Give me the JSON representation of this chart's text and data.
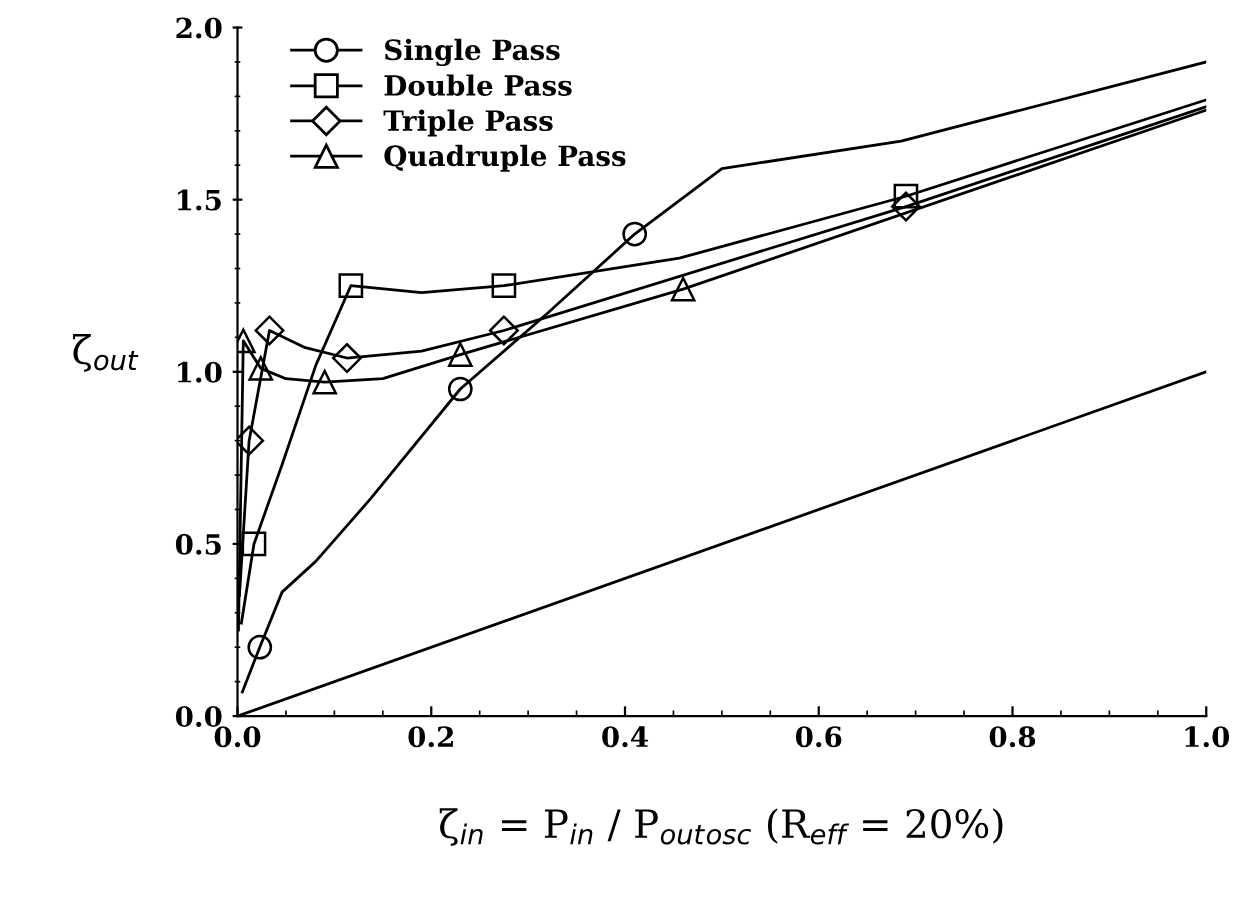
{
  "chart_data": {
    "type": "line",
    "xlabel": "ζ$_{in}$ = P$_{in}$ / P$_{out}$$_{osc}$ (R$_{eff}$ = 20%)",
    "ylabel": "ζ$_{out}$",
    "xlim": [
      0,
      1
    ],
    "ylim": [
      0,
      2
    ],
    "xticks": [
      {
        "value": 0,
        "label": "0.0"
      },
      0.2,
      0.4,
      0.6,
      0.8,
      {
        "value": 1,
        "label": "1.0"
      }
    ],
    "yticks": [
      {
        "value": 0,
        "label": "0.0"
      },
      0.5,
      {
        "value": 1,
        "label": "1.0"
      },
      1.5,
      {
        "value": 2,
        "label": "2.0"
      }
    ],
    "grid": false,
    "legend": "top left",
    "line_style": "solid",
    "series": [
      {
        "color": "#000000",
        "marker": "none",
        "x": [
          0.005,
          0.023,
          0.046,
          0.081,
          0.137,
          0.23,
          0.32,
          0.41,
          0.5,
          0.685,
          1.0
        ],
        "values": [
          0.07,
          0.2,
          0.36,
          0.45,
          0.63,
          0.95,
          1.17,
          1.4,
          1.59,
          1.67,
          1.9
        ]
      },
      {
        "type": "scatter",
        "name": "Single Pass",
        "color": "#000000",
        "marker": "circle",
        "x": [
          0.023,
          0.23,
          0.41
        ],
        "values": [
          0.2,
          0.95,
          1.4
        ]
      },
      {
        "color": "#000000",
        "marker": "none",
        "x": [
          0.004,
          0.017,
          0.046,
          0.081,
          0.117,
          0.19,
          0.275,
          0.456,
          0.69,
          1.0
        ],
        "values": [
          0.27,
          0.5,
          0.73,
          1.02,
          1.25,
          1.23,
          1.25,
          1.33,
          1.51,
          1.79
        ]
      },
      {
        "type": "scatter",
        "name": "Double Pass",
        "color": "#000000",
        "marker": "square",
        "x": [
          0.017,
          0.117,
          0.275,
          0.69
        ],
        "values": [
          0.5,
          1.25,
          1.25,
          1.51
        ]
      },
      {
        "color": "#000000",
        "marker": "none",
        "x": [
          0.002,
          0.012,
          0.033,
          0.07,
          0.113,
          0.19,
          0.275,
          0.69,
          1.0
        ],
        "values": [
          0.35,
          0.8,
          1.12,
          1.07,
          1.04,
          1.06,
          1.12,
          1.48,
          1.77
        ]
      },
      {
        "type": "scatter",
        "name": "Triple Pass",
        "color": "#000000",
        "marker": "diamond",
        "x": [
          0.012,
          0.033,
          0.113,
          0.275,
          0.69
        ],
        "values": [
          0.8,
          1.12,
          1.04,
          1.12,
          1.48
        ]
      },
      {
        "color": "#000000",
        "marker": "none",
        "x": [
          0.001,
          0.006,
          0.024,
          0.05,
          0.09,
          0.15,
          0.23,
          0.46,
          1.0
        ],
        "values": [
          0.25,
          1.09,
          1.01,
          0.98,
          0.97,
          0.98,
          1.05,
          1.24,
          1.76
        ]
      },
      {
        "type": "scatter",
        "name": "Quadruple Pass",
        "color": "#000000",
        "marker": "triangle",
        "x": [
          0.006,
          0.024,
          0.09,
          0.23,
          0.46
        ],
        "values": [
          1.09,
          1.01,
          0.97,
          1.05,
          1.24
        ]
      },
      {
        "color": "#000000",
        "marker": "none",
        "x": [
          0,
          1
        ],
        "values": [
          0,
          1
        ]
      }
    ]
  }
}
